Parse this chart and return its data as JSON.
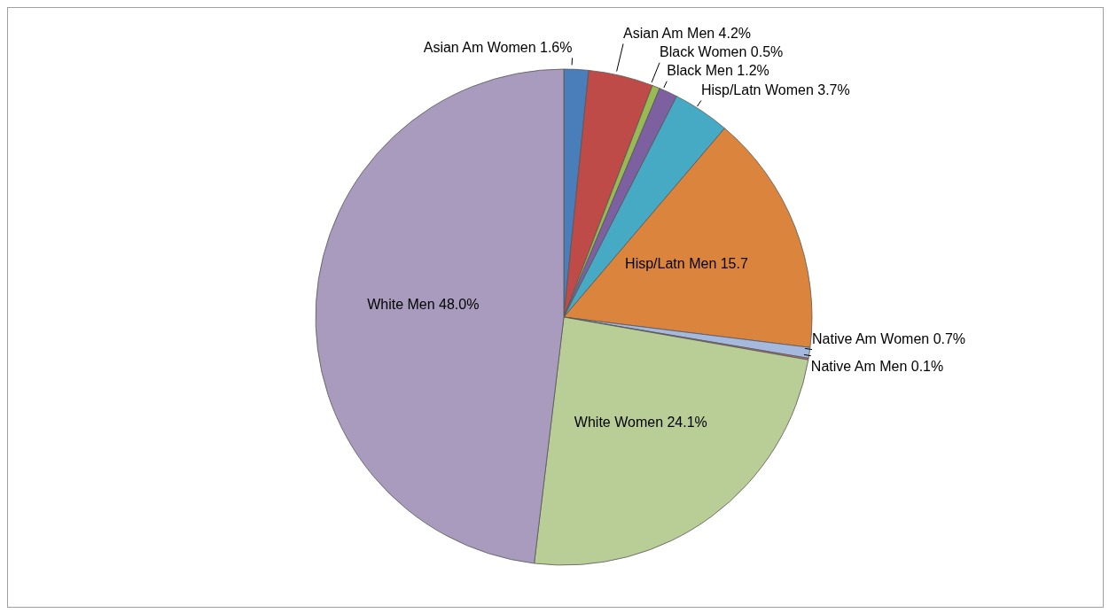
{
  "chart_data": {
    "type": "pie",
    "categories": [
      "Asian Am Women",
      "Asian Am Men",
      "Black Women",
      "Black Men",
      "Hisp/Latn Women",
      "Hisp/Latn Men",
      "Native Am Women",
      "Native Am Men",
      "White Women",
      "White Men"
    ],
    "values": [
      1.6,
      4.2,
      0.5,
      1.2,
      3.7,
      15.7,
      0.7,
      0.1,
      24.1,
      48.0
    ],
    "value_labels": [
      "1.6%",
      "4.2%",
      "0.5%",
      "1.2%",
      "3.7%",
      "15.7",
      "0.7%",
      "0.1%",
      "24.1%",
      "48.0%"
    ],
    "colors": [
      "#4a7ebb",
      "#be4b48",
      "#98b954",
      "#7d60a0",
      "#46aac5",
      "#db843d",
      "#a5b8de",
      "#cd7371",
      "#b9cd96",
      "#a99bbd"
    ],
    "legend": false
  }
}
